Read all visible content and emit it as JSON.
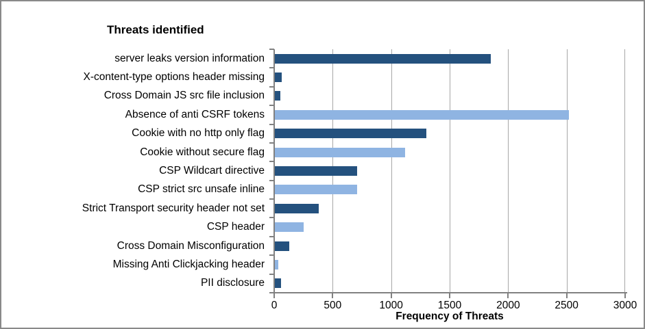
{
  "frame": {
    "background": "#FFFFFF",
    "border_color": "#898989"
  },
  "chart_data": {
    "type": "bar",
    "orientation": "horizontal",
    "title": "Threats identified",
    "xlabel": "Frequency of Threats",
    "ylabel": "",
    "xlim": [
      0,
      3000
    ],
    "x_ticks": [
      0,
      500,
      1000,
      1500,
      2000,
      2500,
      3000
    ],
    "grid": true,
    "legend": false,
    "categories": [
      "server leaks version information",
      "X-content-type options header missing",
      "Cross Domain JS src file inclusion",
      "Absence of anti CSRF tokens",
      "Cookie with no http only flag",
      "Cookie without secure flag",
      "CSP Wildcart directive",
      "CSP strict src unsafe inline",
      "Strict Transport security header not set",
      "CSP header",
      "Cross Domain Misconfiguration",
      "Missing Anti Clickjacking header",
      "PII disclosure"
    ],
    "values": [
      1850,
      65,
      55,
      2520,
      1300,
      1120,
      710,
      710,
      380,
      250,
      130,
      35,
      60
    ],
    "bar_series": [
      "dark",
      "dark",
      "dark",
      "light",
      "dark",
      "light",
      "dark",
      "light",
      "dark",
      "light",
      "dark",
      "light",
      "dark"
    ],
    "bar_palette": {
      "dark": "#24517E",
      "light": "#8FB4E2"
    },
    "gridline_color": "#A6A6A6",
    "axis_color": "#808080",
    "text_color": "#000000"
  }
}
